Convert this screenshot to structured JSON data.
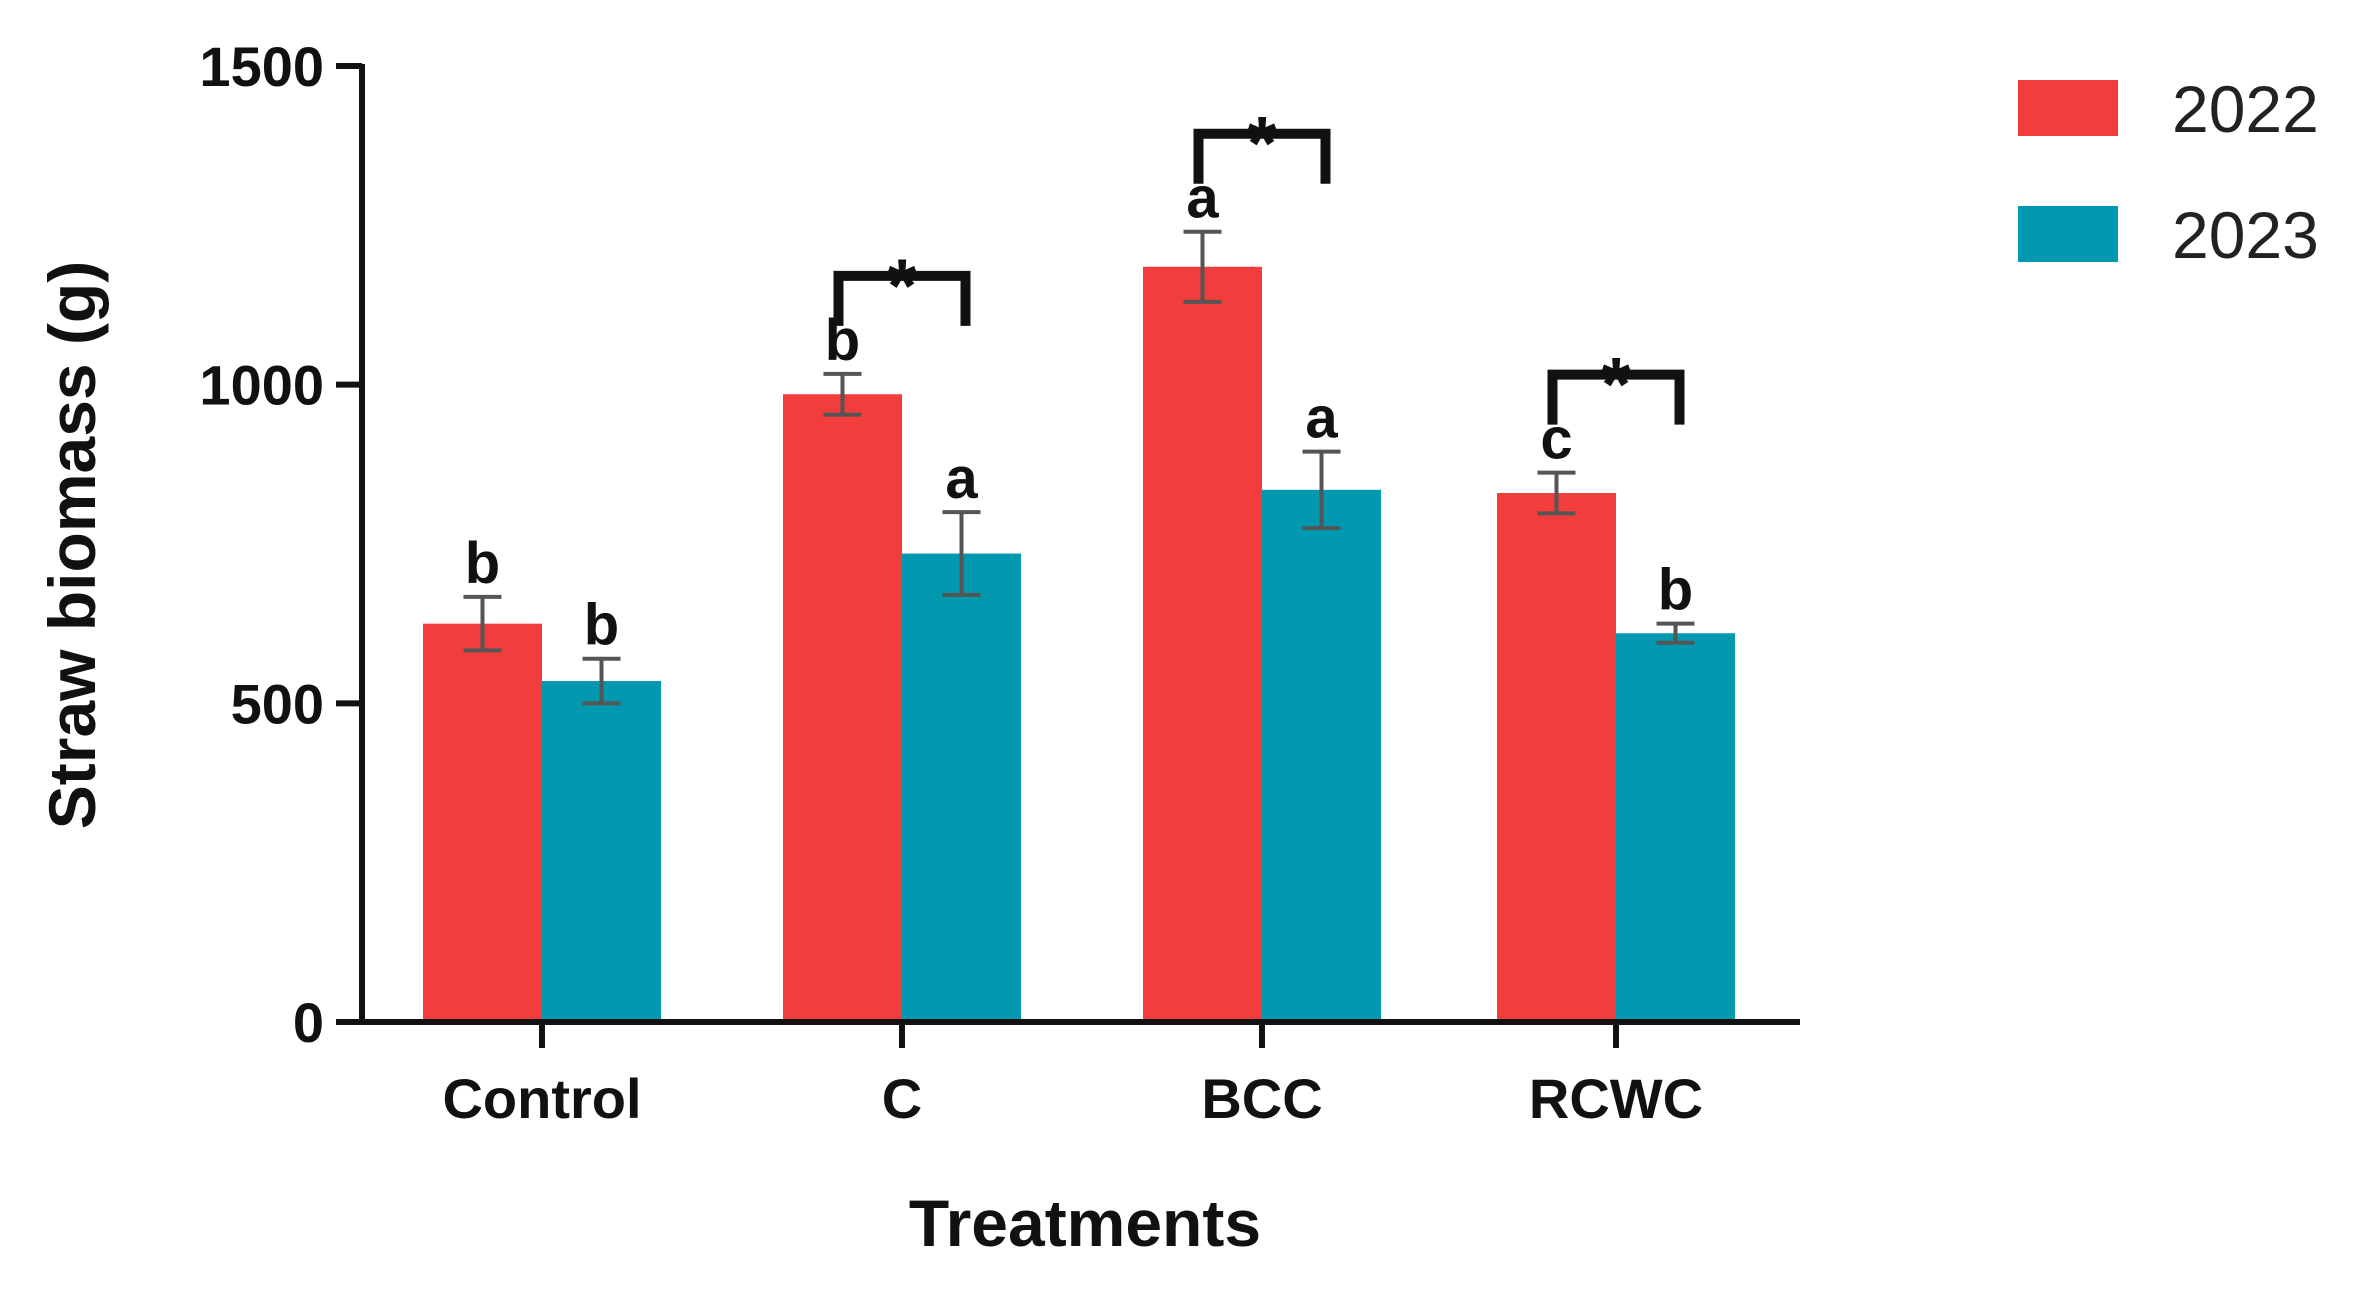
{
  "chart_data": {
    "type": "bar",
    "title": "",
    "xlabel": "Treatments",
    "ylabel": "Straw biomass (g)",
    "ylim": [
      0,
      1500
    ],
    "yticks": [
      0,
      500,
      1000,
      1500
    ],
    "categories": [
      "Control",
      "C",
      "BCC",
      "RCWC"
    ],
    "series": [
      {
        "name": "2022",
        "color": "#f23d3d",
        "values": [
          625,
          985,
          1185,
          830
        ],
        "errors": [
          42,
          32,
          55,
          32
        ],
        "letters": [
          "b",
          "b",
          "a",
          "c"
        ]
      },
      {
        "name": "2023",
        "color": "#0099b0",
        "values": [
          535,
          735,
          835,
          610
        ],
        "errors": [
          35,
          65,
          60,
          15
        ],
        "letters": [
          "b",
          "a",
          "a",
          "b"
        ]
      }
    ],
    "significance": [
      {
        "category": "Control",
        "marker": ""
      },
      {
        "category": "C",
        "marker": "*"
      },
      {
        "category": "BCC",
        "marker": "*"
      },
      {
        "category": "RCWC",
        "marker": "*"
      }
    ],
    "legend_position": "top-right"
  }
}
